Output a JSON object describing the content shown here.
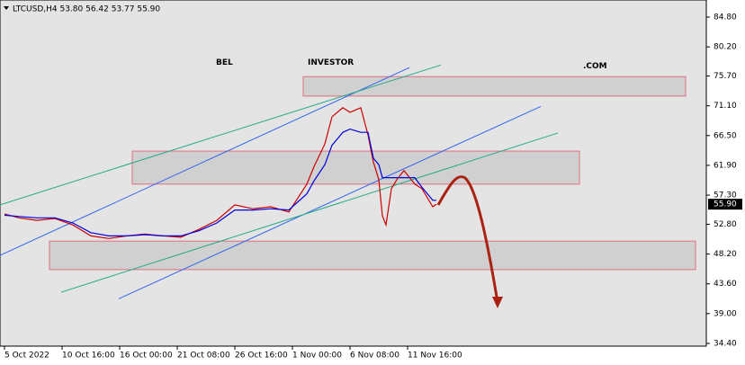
{
  "chart_data": {
    "type": "line",
    "header": "LTCUSD,H4 53.80 56.42 53.77 55.90",
    "watermark": [
      "BEL",
      "INVESTOR",
      ".COM"
    ],
    "x": [
      0,
      8,
      18,
      28,
      38,
      48,
      58,
      68,
      78,
      88,
      98,
      108,
      118,
      128,
      138,
      148,
      158,
      168,
      172,
      178,
      182,
      188,
      192,
      198,
      202,
      205,
      208,
      210,
      212,
      215,
      218,
      222,
      228,
      232,
      238,
      240
    ],
    "series": [
      {
        "color": "#cc0000",
        "values": [
          54.4,
          53.8,
          53.4,
          53.7,
          52.7,
          51.0,
          50.6,
          51.0,
          51.3,
          51.0,
          50.8,
          52.0,
          53.4,
          55.8,
          55.2,
          55.5,
          54.7,
          59.0,
          61.7,
          65.2,
          69.4,
          70.8,
          70.1,
          70.8,
          66.6,
          62.4,
          59.7,
          54.1,
          52.7,
          58.3,
          59.7,
          61.1,
          59.0,
          58.3,
          55.5,
          55.9
        ]
      },
      {
        "color": "#0000dd",
        "values": [
          54.2,
          54.0,
          53.8,
          53.8,
          53.0,
          51.5,
          51.0,
          51.0,
          51.2,
          51.0,
          51.0,
          51.8,
          53.0,
          55.0,
          55.0,
          55.2,
          55.0,
          57.5,
          59.5,
          62.0,
          65.0,
          67.0,
          67.5,
          67.0,
          67.0,
          63.0,
          62.0,
          60.0,
          60.0,
          60.0,
          60.0,
          60.0,
          60.0,
          58.5,
          56.5,
          56.5
        ]
      }
    ],
    "zones": [
      {
        "xlim": [
          166,
          378.5
        ],
        "ylim": [
          72.6,
          75.6
        ]
      },
      {
        "xlim": [
          71,
          319.5
        ],
        "ylim": [
          59.0,
          64.1
        ]
      },
      {
        "xlim": [
          25,
          384
        ],
        "ylim": [
          45.8,
          50.2
        ]
      }
    ],
    "trendlines": [
      {
        "color": "#3366ee",
        "x": [
          -2.5,
          225
        ],
        "y": [
          48.0,
          77.0
        ]
      },
      {
        "color": "#22aa88",
        "x": [
          -2.5,
          242.5
        ],
        "y": [
          55.8,
          77.4
        ]
      },
      {
        "color": "#3366ee",
        "x": [
          63.5,
          298
        ],
        "y": [
          41.3,
          71.0
        ]
      },
      {
        "color": "#22aa88",
        "x": [
          31.5,
          307.5
        ],
        "y": [
          42.3,
          66.9
        ]
      }
    ],
    "last_price": {
      "value": 55.9,
      "label": "55.90"
    },
    "xlim": [
      -2.5,
      390
    ],
    "ylim": [
      33.98,
      87.44
    ],
    "xticks": [
      {
        "value": 0,
        "label": "5 Oct 2022"
      },
      {
        "value": 32,
        "label": "10 Oct 16:00"
      },
      {
        "value": 64,
        "label": "16 Oct 00:00"
      },
      {
        "value": 96,
        "label": "21 Oct 08:00"
      },
      {
        "value": 128,
        "label": "26 Oct 16:00"
      },
      {
        "value": 160,
        "label": "1 Nov 00:00"
      },
      {
        "value": 192,
        "label": "6 Nov 08:00"
      },
      {
        "value": 224,
        "label": "11 Nov 16:00"
      }
    ],
    "yticks": [
      {
        "value": 84.8,
        "label": "84.80"
      },
      {
        "value": 80.2,
        "label": "80.20"
      },
      {
        "value": 75.7,
        "label": "75.70"
      },
      {
        "value": 71.1,
        "label": "71.10"
      },
      {
        "value": 66.5,
        "label": "66.50"
      },
      {
        "value": 61.9,
        "label": "61.90"
      },
      {
        "value": 57.3,
        "label": "57.30"
      },
      {
        "value": 52.8,
        "label": "52.80"
      },
      {
        "value": 48.2,
        "label": "48.20"
      },
      {
        "value": 43.6,
        "label": "43.60"
      },
      {
        "value": 39.0,
        "label": "39.00"
      },
      {
        "value": 34.4,
        "label": "34.40"
      }
    ]
  }
}
